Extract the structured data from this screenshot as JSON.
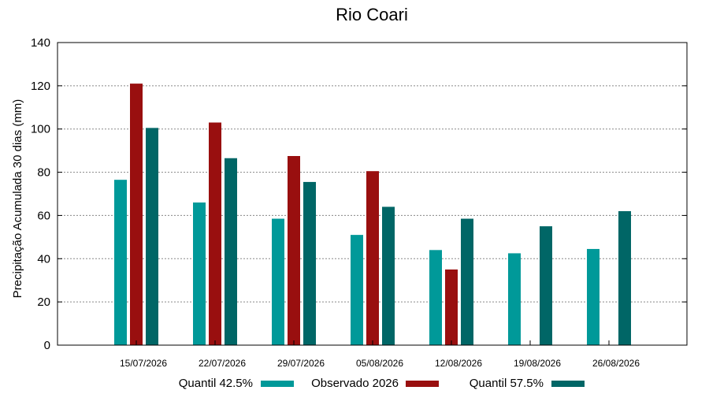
{
  "chart_data": {
    "type": "bar",
    "title": "Rio Coari",
    "xlabel": "",
    "ylabel": "Precipitação Acumulada 30 dias (mm)",
    "ylim": [
      0,
      140
    ],
    "yticks": [
      0,
      20,
      40,
      60,
      80,
      100,
      120,
      140
    ],
    "grid": true,
    "legend_position": "bottom",
    "categories": [
      "15/07/2026",
      "22/07/2026",
      "29/07/2026",
      "05/08/2026",
      "12/08/2026",
      "19/08/2026",
      "26/08/2026"
    ],
    "series": [
      {
        "name": "Quantil 42.5%",
        "color": "#009999",
        "values": [
          76.5,
          66,
          58.5,
          51,
          44,
          42.5,
          44.5
        ]
      },
      {
        "name": "Observado 2026",
        "color": "#990f0f",
        "values": [
          121,
          103,
          87.5,
          80.5,
          35,
          null,
          null
        ]
      },
      {
        "name": "Quantil 57.5%",
        "color": "#006666",
        "values": [
          100.5,
          86.5,
          75.5,
          64,
          58.5,
          55,
          62
        ]
      }
    ]
  }
}
